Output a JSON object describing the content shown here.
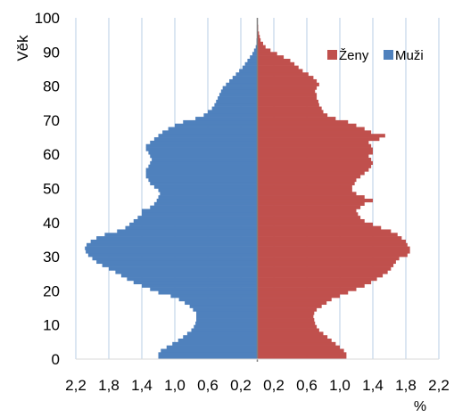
{
  "chart_data": {
    "type": "bar",
    "orientation": "horizontal",
    "layout": "population-pyramid",
    "ylabel": "Věk",
    "xlabel": "%",
    "x_ticks": [
      "2,2",
      "1,8",
      "1,4",
      "1,0",
      "0,6",
      "0,2",
      "0,2",
      "0,6",
      "1,0",
      "1,4",
      "1,8",
      "2,2"
    ],
    "y_ticks": [
      "0",
      "10",
      "20",
      "30",
      "40",
      "50",
      "60",
      "70",
      "80",
      "90",
      "100"
    ],
    "xlim": [
      -2.2,
      2.2
    ],
    "ylim": [
      0,
      100
    ],
    "grid": "vertical",
    "legend_position": "top-right",
    "colors": {
      "men": "#4f81bd",
      "women": "#c0504d"
    },
    "ages": [
      0,
      1,
      2,
      3,
      4,
      5,
      6,
      7,
      8,
      9,
      10,
      11,
      12,
      13,
      14,
      15,
      16,
      17,
      18,
      19,
      20,
      21,
      22,
      23,
      24,
      25,
      26,
      27,
      28,
      29,
      30,
      31,
      32,
      33,
      34,
      35,
      36,
      37,
      38,
      39,
      40,
      41,
      42,
      43,
      44,
      45,
      46,
      47,
      48,
      49,
      50,
      51,
      52,
      53,
      54,
      55,
      56,
      57,
      58,
      59,
      60,
      61,
      62,
      63,
      64,
      65,
      66,
      67,
      68,
      69,
      70,
      71,
      72,
      73,
      74,
      75,
      76,
      77,
      78,
      79,
      80,
      81,
      82,
      83,
      84,
      85,
      86,
      87,
      88,
      89,
      90,
      91,
      92,
      93,
      94,
      95,
      96,
      97,
      98,
      99,
      100
    ],
    "series": [
      {
        "name": "Muži",
        "values": [
          1.2,
          1.2,
          1.17,
          1.1,
          1.03,
          0.96,
          0.9,
          0.85,
          0.8,
          0.77,
          0.75,
          0.74,
          0.74,
          0.74,
          0.78,
          0.82,
          0.88,
          0.95,
          1.05,
          1.2,
          1.3,
          1.4,
          1.5,
          1.58,
          1.65,
          1.72,
          1.8,
          1.88,
          1.95,
          2.0,
          2.05,
          2.08,
          2.09,
          2.07,
          2.02,
          1.95,
          1.85,
          1.7,
          1.6,
          1.55,
          1.5,
          1.45,
          1.4,
          1.4,
          1.3,
          1.25,
          1.22,
          1.2,
          1.18,
          1.2,
          1.25,
          1.3,
          1.32,
          1.35,
          1.35,
          1.35,
          1.32,
          1.3,
          1.28,
          1.3,
          1.32,
          1.35,
          1.35,
          1.3,
          1.25,
          1.2,
          1.15,
          1.08,
          1.0,
          0.9,
          0.75,
          0.65,
          0.6,
          0.55,
          0.52,
          0.5,
          0.48,
          0.46,
          0.44,
          0.42,
          0.38,
          0.34,
          0.3,
          0.26,
          0.22,
          0.18,
          0.15,
          0.12,
          0.09,
          0.06,
          0.04,
          0.02,
          0.01,
          0.01,
          0.0,
          0.0,
          0.0,
          0.0,
          0.0,
          0.0,
          0.0
        ]
      },
      {
        "name": "Ženy",
        "values": [
          1.08,
          1.08,
          1.05,
          1.0,
          0.95,
          0.9,
          0.85,
          0.8,
          0.75,
          0.72,
          0.7,
          0.69,
          0.68,
          0.69,
          0.72,
          0.78,
          0.84,
          0.9,
          1.0,
          1.1,
          1.2,
          1.3,
          1.38,
          1.45,
          1.52,
          1.58,
          1.62,
          1.65,
          1.68,
          1.72,
          1.82,
          1.85,
          1.85,
          1.82,
          1.8,
          1.75,
          1.7,
          1.62,
          1.5,
          1.4,
          1.3,
          1.25,
          1.22,
          1.2,
          1.25,
          1.3,
          1.4,
          1.3,
          1.2,
          1.15,
          1.15,
          1.18,
          1.2,
          1.25,
          1.3,
          1.35,
          1.38,
          1.4,
          1.38,
          1.35,
          1.4,
          1.4,
          1.38,
          1.35,
          1.48,
          1.55,
          1.38,
          1.3,
          1.2,
          1.1,
          0.95,
          0.85,
          0.8,
          0.78,
          0.75,
          0.74,
          0.72,
          0.72,
          0.7,
          0.72,
          0.75,
          0.72,
          0.68,
          0.62,
          0.55,
          0.5,
          0.45,
          0.4,
          0.32,
          0.24,
          0.16,
          0.1,
          0.07,
          0.04,
          0.03,
          0.02,
          0.01,
          0.01,
          0.0,
          0.0,
          0.0
        ]
      }
    ]
  }
}
